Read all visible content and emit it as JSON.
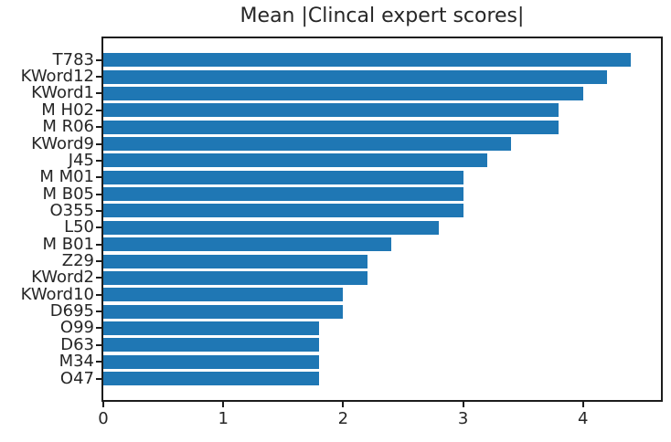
{
  "chart_data": {
    "type": "bar",
    "orientation": "horizontal",
    "title": "Mean |Clincal expert scores|",
    "categories": [
      "T783",
      "KWord12",
      "KWord1",
      "M H02",
      "M R06",
      "KWord9",
      "J45",
      "M M01",
      "M B05",
      "O355",
      "L50",
      "M B01",
      "Z29",
      "KWord2",
      "KWord10",
      "D695",
      "O99",
      "D63",
      "M34",
      "O47"
    ],
    "values": [
      4.4,
      4.2,
      4.0,
      3.8,
      3.8,
      3.4,
      3.2,
      3.0,
      3.0,
      3.0,
      2.8,
      2.4,
      2.2,
      2.2,
      2.0,
      2.0,
      1.8,
      1.8,
      1.8,
      1.8
    ],
    "xlabel": "",
    "ylabel": "",
    "xlim": [
      0,
      4.65
    ],
    "x_ticks": [
      0,
      1,
      2,
      3,
      4
    ],
    "bar_color": "#1f77b4",
    "axis_color": "#1c1c1c",
    "text_color": "#262626",
    "grid": false,
    "legend": null
  }
}
